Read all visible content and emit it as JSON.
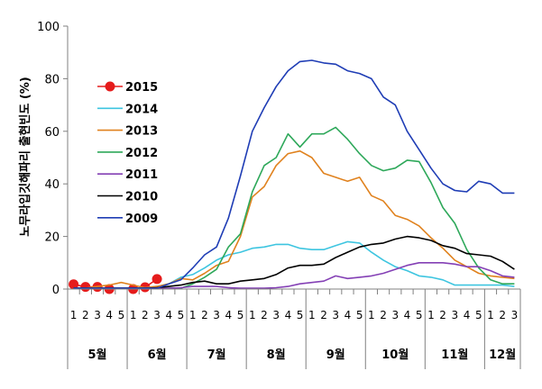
{
  "chart_data": {
    "type": "line",
    "title": "",
    "ylabel": "노무라입깃해파리 출현빈도 (%)",
    "xlabel": "",
    "ylim": [
      0,
      100
    ],
    "yticks": [
      0,
      20,
      40,
      60,
      80,
      100
    ],
    "grid": false,
    "legend_position": "left",
    "week_labels": [
      "1",
      "2",
      "3",
      "4",
      "5",
      "1",
      "2",
      "3",
      "4",
      "5",
      "1",
      "2",
      "3",
      "4",
      "5",
      "1",
      "2",
      "3",
      "4",
      "5",
      "1",
      "2",
      "3",
      "4",
      "5",
      "1",
      "2",
      "3",
      "4",
      "5",
      "1",
      "2",
      "3",
      "4",
      "5",
      "1",
      "2",
      "3"
    ],
    "months": [
      {
        "label": "5월",
        "weeks": 5
      },
      {
        "label": "6월",
        "weeks": 5
      },
      {
        "label": "7월",
        "weeks": 5
      },
      {
        "label": "8월",
        "weeks": 5
      },
      {
        "label": "9월",
        "weeks": 5
      },
      {
        "label": "10월",
        "weeks": 5
      },
      {
        "label": "11월",
        "weeks": 5
      },
      {
        "label": "12월",
        "weeks": 3
      }
    ],
    "series": [
      {
        "name": "2015",
        "color": "#e51b1b",
        "marker": "circle",
        "values": [
          1.8,
          0.8,
          0.8,
          0.0,
          null,
          0.0,
          0.7,
          3.8
        ]
      },
      {
        "name": "2014",
        "color": "#3ec5e0",
        "values": [
          0.3,
          0.3,
          0.3,
          0.3,
          0.3,
          0.3,
          0.5,
          1.0,
          2.0,
          4.5,
          5.5,
          8.0,
          11.0,
          13.0,
          14.0,
          15.5,
          16.0,
          17.0,
          17.0,
          15.5,
          15.0,
          15.0,
          16.5,
          18.0,
          17.5,
          14.0,
          11.0,
          8.5,
          7.0,
          5.0,
          4.5,
          3.5,
          1.5,
          1.5,
          1.5,
          1.5,
          1.5,
          1.0
        ]
      },
      {
        "name": "2013",
        "color": "#e0821e",
        "values": [
          0.3,
          0.3,
          1.0,
          1.5,
          2.5,
          1.5,
          0.5,
          1.0,
          2.0,
          4.0,
          3.5,
          6.0,
          9.0,
          10.5,
          20.0,
          35.0,
          39.0,
          47.0,
          51.5,
          52.5,
          50.0,
          44.0,
          42.5,
          41.0,
          42.5,
          35.5,
          33.5,
          28.0,
          26.5,
          24.0,
          19.5,
          15.5,
          11.0,
          8.5,
          6.0,
          5.0,
          4.5,
          4.0
        ]
      },
      {
        "name": "2012",
        "color": "#2ea85a",
        "values": [
          0.3,
          0.3,
          0.3,
          0.3,
          0.3,
          0.3,
          0.3,
          0.3,
          0.3,
          0.3,
          2.0,
          4.5,
          7.5,
          16.0,
          21.0,
          37.0,
          47.0,
          50.0,
          59.0,
          54.0,
          59.0,
          59.0,
          61.5,
          57.0,
          51.5,
          47.0,
          45.0,
          46.0,
          49.0,
          48.5,
          40.5,
          31.0,
          25.0,
          15.0,
          8.0,
          3.5,
          2.0,
          2.0
        ]
      },
      {
        "name": "2011",
        "color": "#8440b5",
        "values": [
          0.3,
          0.3,
          0.3,
          0.3,
          0.3,
          0.3,
          0.3,
          0.3,
          0.3,
          0.5,
          1.0,
          1.0,
          1.0,
          0.5,
          0.3,
          0.3,
          0.3,
          0.5,
          1.0,
          2.0,
          2.5,
          3.0,
          5.0,
          4.0,
          4.5,
          5.0,
          6.0,
          7.5,
          9.0,
          10.0,
          10.0,
          10.0,
          9.5,
          8.5,
          8.5,
          7.0,
          5.0,
          4.5
        ]
      },
      {
        "name": "2010",
        "color": "#000000",
        "values": [
          0.3,
          0.3,
          0.3,
          0.3,
          0.3,
          0.3,
          0.3,
          0.5,
          1.0,
          1.5,
          2.5,
          3.0,
          2.0,
          2.0,
          3.0,
          3.5,
          4.0,
          5.5,
          8.0,
          9.0,
          9.0,
          9.5,
          12.0,
          14.0,
          16.0,
          17.0,
          17.5,
          19.0,
          20.0,
          19.5,
          18.5,
          16.5,
          15.5,
          13.5,
          13.0,
          12.5,
          10.5,
          7.5
        ]
      },
      {
        "name": "2009",
        "color": "#1f3db5",
        "values": [
          0.3,
          0.3,
          0.3,
          0.3,
          0.3,
          0.3,
          0.3,
          0.3,
          2.0,
          3.5,
          8.0,
          13.0,
          16.0,
          27.0,
          43.0,
          60.0,
          69.0,
          77.0,
          83.0,
          86.5,
          87.0,
          86.0,
          85.5,
          83.0,
          82.0,
          80.0,
          73.0,
          70.0,
          60.0,
          53.0,
          46.0,
          40.0,
          37.5,
          37.0,
          41.0,
          40.0,
          36.5,
          36.5
        ]
      }
    ]
  }
}
